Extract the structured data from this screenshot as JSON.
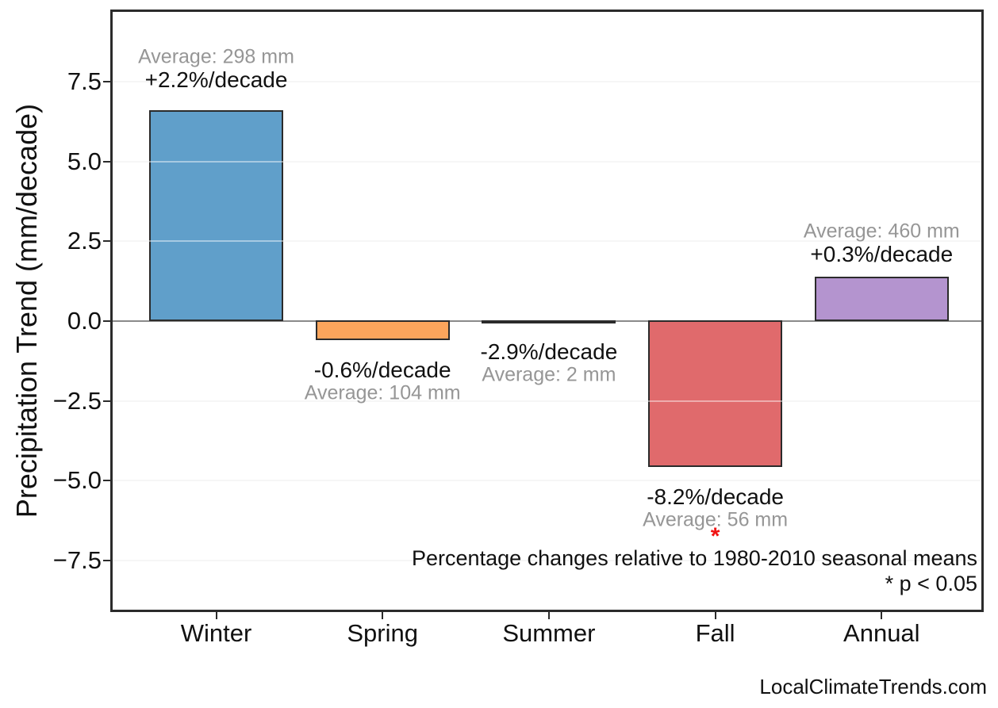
{
  "figure": {
    "y_axis_title": "Precipitation Trend (mm/decade)",
    "caption_line1": "Percentage changes relative to 1980-2010 seasonal means",
    "caption_line2": "* p < 0.05",
    "watermark": "LocalClimateTrends.com"
  },
  "chart_data": {
    "type": "bar",
    "title": "",
    "ylabel": "Precipitation Trend (mm/decade)",
    "xlabel": "",
    "categories": [
      "Winter",
      "Spring",
      "Summer",
      "Fall",
      "Annual"
    ],
    "values": [
      6.6,
      -0.62,
      -0.06,
      -4.6,
      1.38
    ],
    "bar_colors": [
      "#609FCA",
      "#FBA55C",
      "#4A5F4A",
      "#E06A6C",
      "#B494CF"
    ],
    "ylim": [
      -9.4,
      9.7
    ],
    "yticks": [
      {
        "value": 7.5,
        "label": "7.5"
      },
      {
        "value": 5.0,
        "label": "5.0"
      },
      {
        "value": 2.5,
        "label": "2.5"
      },
      {
        "value": 0.0,
        "label": "0.0"
      },
      {
        "value": -2.5,
        "label": "−2.5"
      },
      {
        "value": -5.0,
        "label": "−5.0"
      },
      {
        "value": -7.5,
        "label": "−7.5"
      }
    ],
    "grid": "horizontal",
    "zero_line": true,
    "legend": "none",
    "annotations": [
      {
        "category": "Winter",
        "trend_label": "+2.2%/decade",
        "average_label": "Average: 298 mm",
        "significant": false
      },
      {
        "category": "Spring",
        "trend_label": "-0.6%/decade",
        "average_label": "Average: 104 mm",
        "significant": false
      },
      {
        "category": "Summer",
        "trend_label": "-2.9%/decade",
        "average_label": "Average: 2 mm",
        "significant": false
      },
      {
        "category": "Fall",
        "trend_label": "-8.2%/decade",
        "average_label": "Average: 56 mm",
        "significant": true
      },
      {
        "category": "Annual",
        "trend_label": "+0.3%/decade",
        "average_label": "Average: 460 mm",
        "significant": false
      }
    ],
    "significance_marker": "*",
    "colors": {
      "grid": "#efefef",
      "zero_line": "#8a8a8a",
      "bar_border": "#2b2b2b",
      "secondary_text": "#969696",
      "significance_star": "#f01414",
      "text": "#111111",
      "background": "#ffffff"
    }
  }
}
